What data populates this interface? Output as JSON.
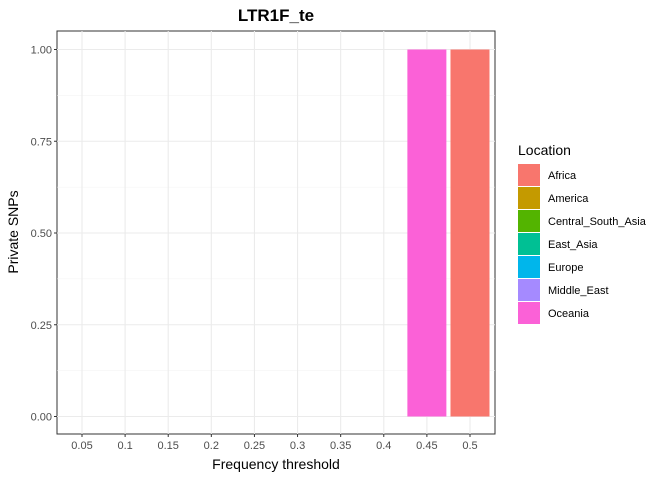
{
  "chart_data": {
    "type": "bar",
    "title": "LTR1F_te",
    "xlabel": "Frequency threshold",
    "ylabel": "Private SNPs",
    "categories": [
      "0.05",
      "0.1",
      "0.15",
      "0.2",
      "0.25",
      "0.3",
      "0.35",
      "0.4",
      "0.45",
      "0.5"
    ],
    "yticks": [
      "0.00",
      "0.25",
      "0.50",
      "0.75",
      "1.00"
    ],
    "ylim": [
      0,
      1
    ],
    "grid": true,
    "legend": {
      "title": "Location",
      "position": "right",
      "entries": [
        {
          "name": "Africa",
          "color": "#F8766D"
        },
        {
          "name": "America",
          "color": "#C49A00"
        },
        {
          "name": "Central_South_Asia",
          "color": "#53B400"
        },
        {
          "name": "East_Asia",
          "color": "#00C094"
        },
        {
          "name": "Europe",
          "color": "#00B6EB"
        },
        {
          "name": "Middle_East",
          "color": "#A58AFF"
        },
        {
          "name": "Oceania",
          "color": "#FB61D7"
        }
      ]
    },
    "series": [
      {
        "name": "Oceania",
        "color": "#FB61D7",
        "values": [
          0,
          0,
          0,
          0,
          0,
          0,
          0,
          0,
          1,
          0
        ]
      },
      {
        "name": "Africa",
        "color": "#F8766D",
        "values": [
          0,
          0,
          0,
          0,
          0,
          0,
          0,
          0,
          0,
          1
        ]
      }
    ]
  }
}
